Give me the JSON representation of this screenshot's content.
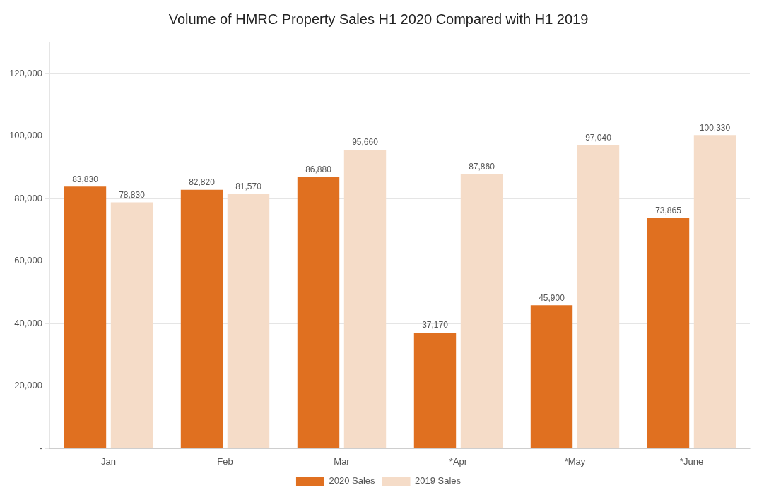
{
  "chart_data": {
    "type": "bar",
    "title": "Volume of HMRC Property Sales H1 2020 Compared with H1 2019",
    "categories": [
      "Jan",
      "Feb",
      "Mar",
      "*Apr",
      "*May",
      "*June"
    ],
    "series": [
      {
        "name": "2020 Sales",
        "color": "#E07020",
        "values": [
          83830,
          82820,
          86880,
          37170,
          45900,
          73865
        ],
        "value_labels": [
          "83,830",
          "82,820",
          "86,880",
          "37,170",
          "45,900",
          "73,865"
        ]
      },
      {
        "name": "2019 Sales",
        "color": "#F5DCC8",
        "values": [
          78830,
          81570,
          95660,
          87860,
          97040,
          100330
        ],
        "value_labels": [
          "78,830",
          "81,570",
          "95,660",
          "87,860",
          "97,040",
          "100,330"
        ]
      }
    ],
    "ylim": [
      0,
      130000
    ],
    "yticks": [
      {
        "value": 0,
        "label": "-"
      },
      {
        "value": 20000,
        "label": "20,000"
      },
      {
        "value": 40000,
        "label": "40,000"
      },
      {
        "value": 60000,
        "label": "60,000"
      },
      {
        "value": 80000,
        "label": "80,000"
      },
      {
        "value": 100000,
        "label": "100,000"
      },
      {
        "value": 120000,
        "label": "120,000"
      }
    ],
    "grid": true,
    "legend": "bottom",
    "data_labels": true
  }
}
